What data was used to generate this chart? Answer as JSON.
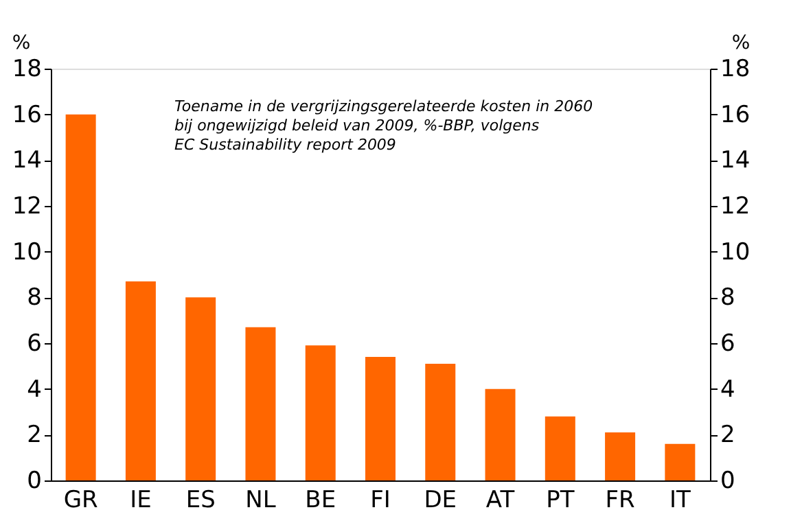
{
  "chart_data": {
    "type": "bar",
    "title": "Toename in de vergrijzingsgerelateerde kosten in 2060\n bij ongewijzigd beleid van 2009, %-BBP, volgens\nEC Sustainability report 2009",
    "ylabel": "%",
    "y2label": "%",
    "categories": [
      "GR",
      "IE",
      "ES",
      "NL",
      "BE",
      "FI",
      "DE",
      "AT",
      "PT",
      "FR",
      "IT"
    ],
    "values": [
      16.0,
      8.7,
      8.0,
      6.7,
      5.9,
      5.4,
      5.1,
      4.0,
      2.8,
      2.1,
      1.6
    ],
    "color": "#ff6600",
    "ylim": [
      0,
      18
    ],
    "yticks": [
      0,
      2,
      4,
      6,
      8,
      10,
      12,
      14,
      16,
      18
    ],
    "y2lim": [
      0,
      18
    ],
    "y2ticks": [
      0,
      2,
      4,
      6,
      8,
      10,
      12,
      14,
      16,
      18
    ],
    "grid": false
  }
}
